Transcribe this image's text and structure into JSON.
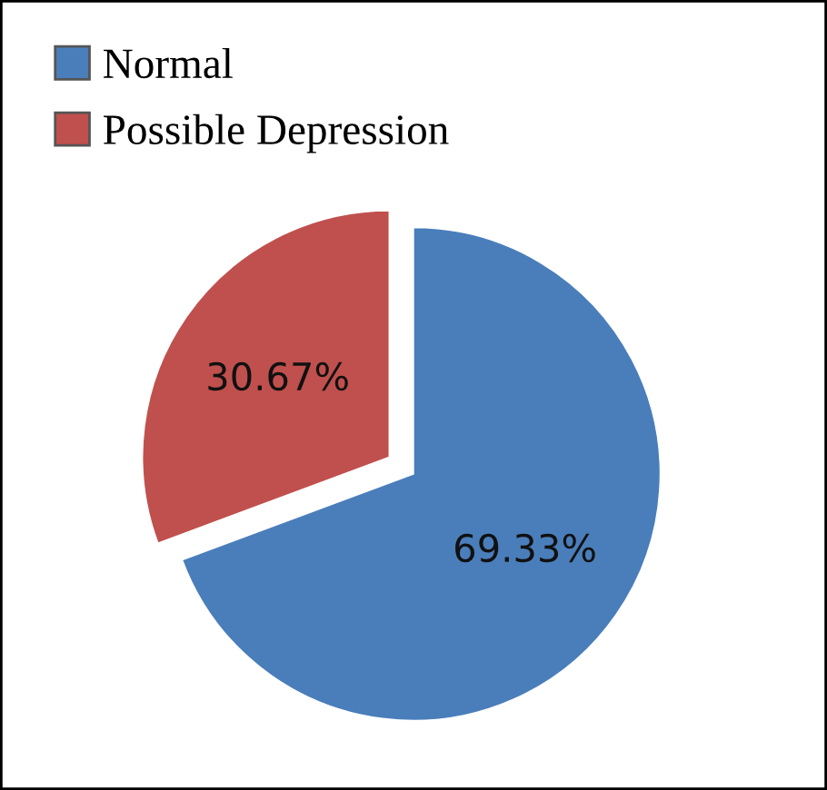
{
  "chart_data": {
    "type": "pie",
    "categories": [
      "Normal",
      "Possible Depression"
    ],
    "values": [
      69.33,
      30.67
    ],
    "colors": [
      "#4a7ebb",
      "#c0504d"
    ],
    "value_labels": [
      "69.33%",
      "30.67%"
    ],
    "legend": "top left"
  }
}
